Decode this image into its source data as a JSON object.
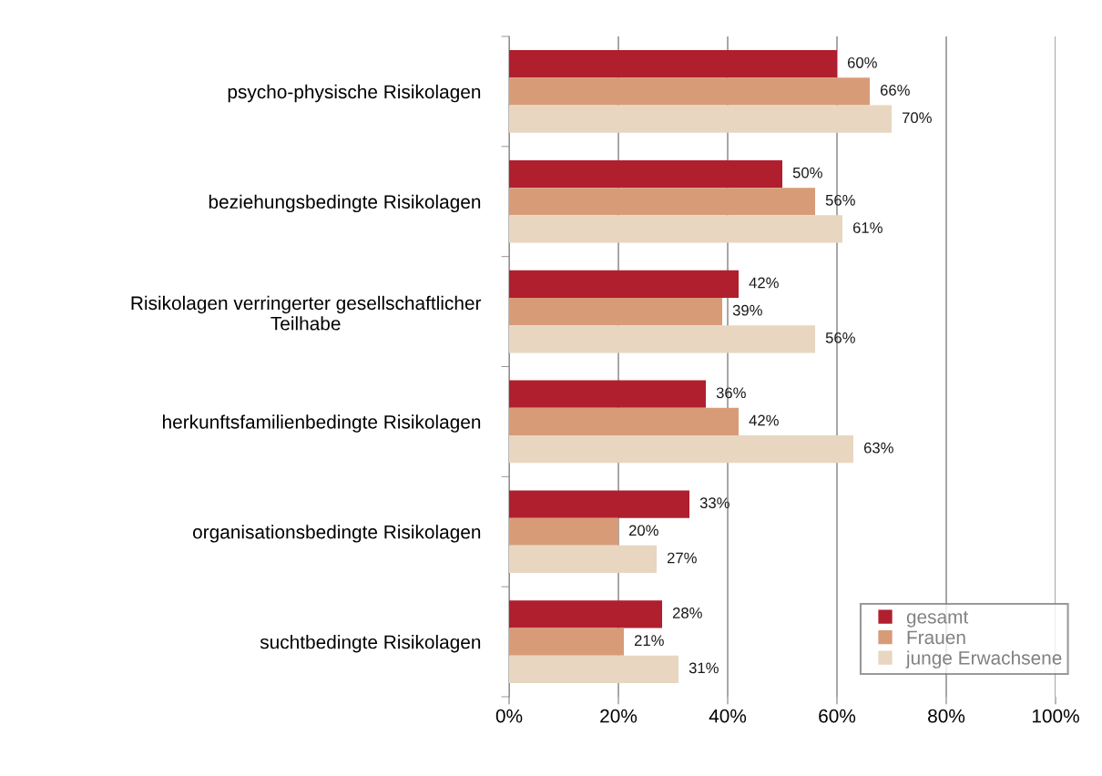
{
  "chart_data": {
    "type": "bar",
    "orientation": "horizontal",
    "categories": [
      "psycho-physische Risikolagen",
      "beziehungsbedingte Risikolagen",
      "Risikolagen verringerter gesellschaftlicher\nTeilhabe",
      "herkunftsfamilienbedingte Risikolagen",
      "organisationsbedingte Risikolagen",
      "suchtbedingte Risikolagen"
    ],
    "series": [
      {
        "name": "gesamt",
        "color": "#b01f2e",
        "values": [
          60,
          50,
          42,
          36,
          33,
          28
        ],
        "value_labels": [
          "60%",
          "50%",
          "42%",
          "36%",
          "33%",
          "28%"
        ]
      },
      {
        "name": "Frauen",
        "color": "#d89b78",
        "values": [
          66,
          56,
          39,
          42,
          20,
          21
        ],
        "value_labels": [
          "66%",
          "56%",
          "39%",
          "42%",
          "20%",
          "21%"
        ]
      },
      {
        "name": "junge Erwachsene",
        "color": "#e8d6c0",
        "values": [
          70,
          61,
          56,
          63,
          27,
          31
        ],
        "value_labels": [
          "70%",
          "61%",
          "56%",
          "63%",
          "27%",
          "31%"
        ]
      }
    ],
    "xlim": [
      0,
      100
    ],
    "xticks": [
      {
        "value": 0,
        "label": "0%"
      },
      {
        "value": 20,
        "label": "20%"
      },
      {
        "value": 40,
        "label": "40%"
      },
      {
        "value": 60,
        "label": "60%"
      },
      {
        "value": 80,
        "label": "80%"
      },
      {
        "value": 100,
        "label": "100%"
      }
    ],
    "grid": "x",
    "legend": "bottom right"
  }
}
